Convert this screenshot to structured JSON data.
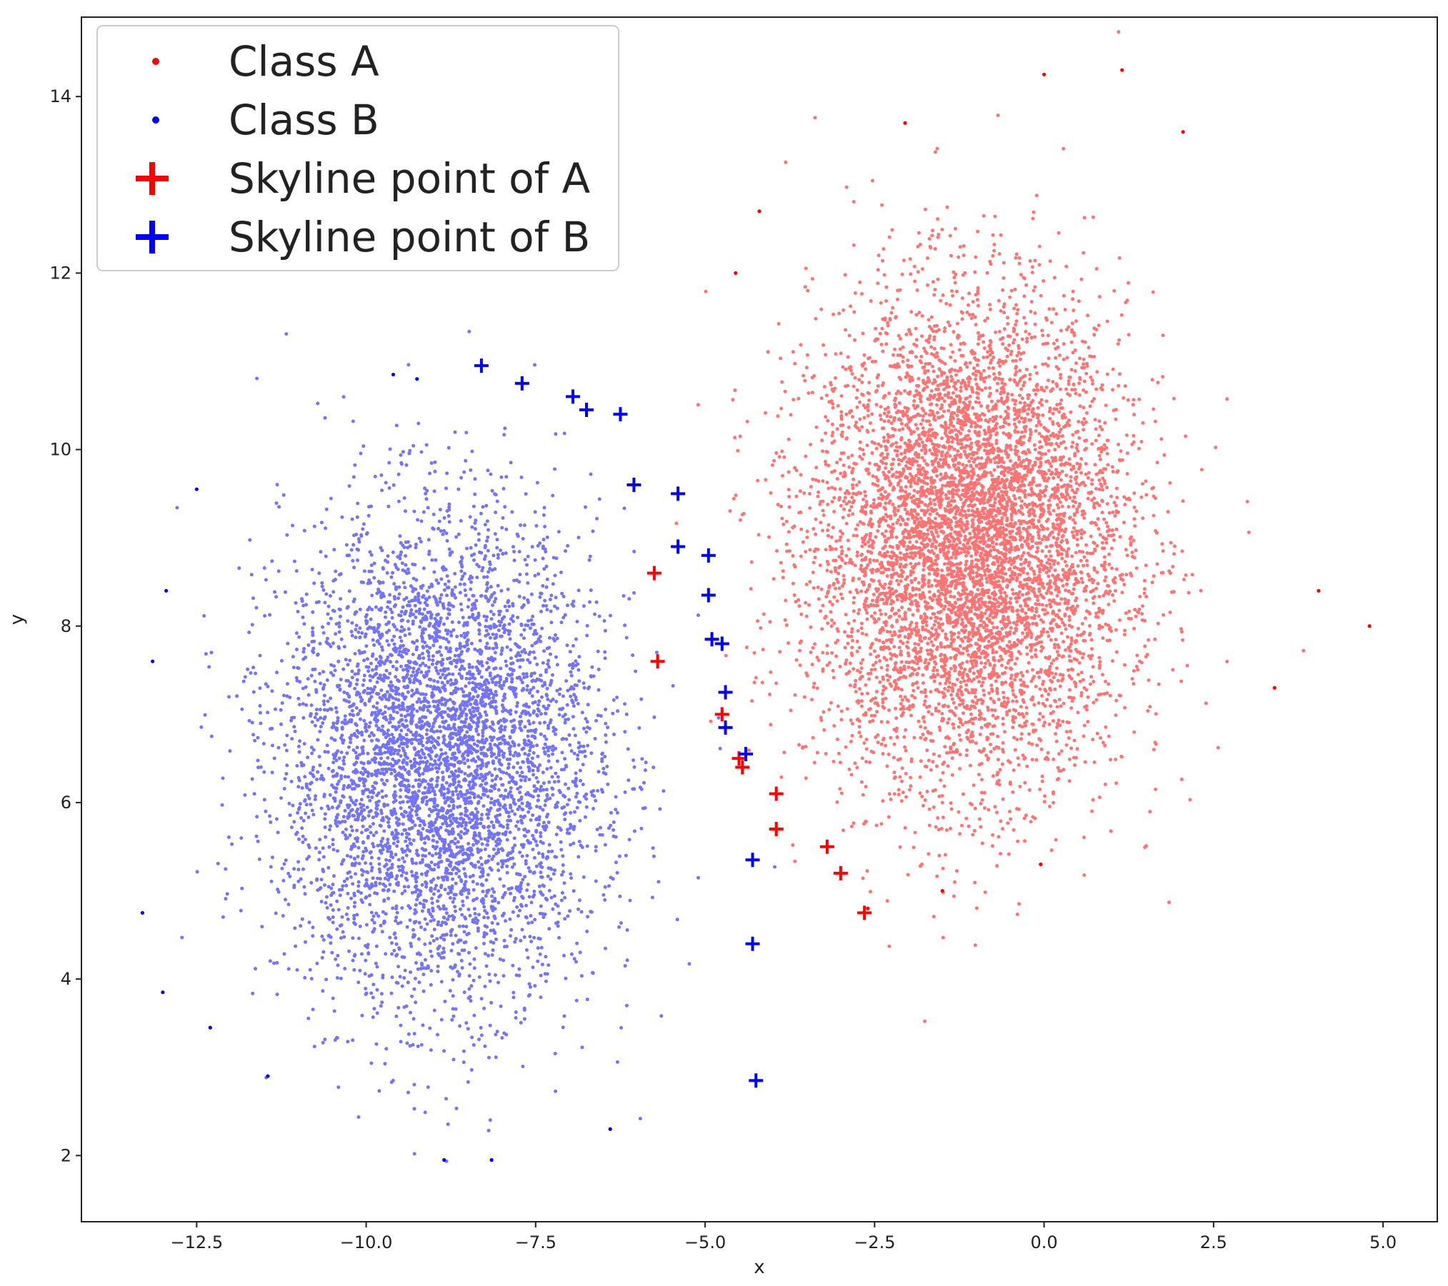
{
  "chart_data": {
    "type": "scatter",
    "title": "",
    "xlabel": "x",
    "ylabel": "y",
    "xlim": [
      -14.2,
      5.8
    ],
    "ylim": [
      1.25,
      14.9
    ],
    "xticks": [
      -12.5,
      -10.0,
      -7.5,
      -5.0,
      -2.5,
      0.0,
      2.5,
      5.0
    ],
    "xtick_labels": [
      "−12.5",
      "−10.0",
      "−7.5",
      "−5.0",
      "−2.5",
      "0.0",
      "2.5",
      "5.0"
    ],
    "yticks": [
      2,
      4,
      6,
      8,
      10,
      12,
      14
    ],
    "ytick_labels": [
      "2",
      "4",
      "6",
      "8",
      "10",
      "12",
      "14"
    ],
    "grid": false,
    "legend_position": "top-left",
    "legend": [
      {
        "label": "Class A",
        "color": "#ff0000",
        "marker": "dot"
      },
      {
        "label": "Class B",
        "color": "#0000ff",
        "marker": "dot"
      },
      {
        "label": "Skyline point of A",
        "color": "#ff0000",
        "marker": "plus"
      },
      {
        "label": "Skyline point of B",
        "color": "#0000ff",
        "marker": "plus"
      }
    ],
    "clusters": [
      {
        "series": "Class A",
        "center": [
          -1.1,
          8.95
        ],
        "std": [
          1.15,
          1.35
        ],
        "count": 20000
      },
      {
        "series": "Class B",
        "center": [
          -8.9,
          6.5
        ],
        "std": [
          1.15,
          1.35
        ],
        "count": 20000
      }
    ],
    "series": [
      {
        "name": "Skyline point of A",
        "color": "#ff0000",
        "marker": "plus",
        "points": [
          [
            -5.75,
            8.6
          ],
          [
            -5.7,
            7.6
          ],
          [
            -4.75,
            7.0
          ],
          [
            -4.5,
            6.5
          ],
          [
            -4.45,
            6.4
          ],
          [
            -3.95,
            6.1
          ],
          [
            -3.95,
            5.7
          ],
          [
            -3.2,
            5.5
          ],
          [
            -3.0,
            5.2
          ],
          [
            -2.65,
            4.75
          ]
        ]
      },
      {
        "name": "Skyline point of B",
        "color": "#0000ff",
        "marker": "plus",
        "points": [
          [
            -8.3,
            10.95
          ],
          [
            -7.7,
            10.75
          ],
          [
            -6.95,
            10.6
          ],
          [
            -6.75,
            10.45
          ],
          [
            -6.25,
            10.4
          ],
          [
            -6.05,
            9.6
          ],
          [
            -5.4,
            9.5
          ],
          [
            -5.4,
            8.9
          ],
          [
            -4.95,
            8.8
          ],
          [
            -4.95,
            8.35
          ],
          [
            -4.9,
            7.85
          ],
          [
            -4.75,
            7.8
          ],
          [
            -4.7,
            7.25
          ],
          [
            -4.7,
            6.85
          ],
          [
            -4.4,
            6.55
          ],
          [
            -4.3,
            5.35
          ],
          [
            -4.3,
            4.4
          ],
          [
            -4.25,
            2.85
          ]
        ]
      },
      {
        "name": "Class A outliers",
        "color": "#ff0000",
        "marker": "dot",
        "points": [
          [
            4.8,
            8.0
          ],
          [
            4.05,
            8.4
          ],
          [
            3.4,
            7.3
          ],
          [
            1.15,
            14.3
          ],
          [
            0.0,
            14.25
          ],
          [
            2.05,
            13.6
          ],
          [
            -2.05,
            13.7
          ],
          [
            -4.2,
            12.7
          ],
          [
            -4.55,
            12.0
          ],
          [
            -2.6,
            4.8
          ],
          [
            -1.5,
            5.0
          ],
          [
            -0.05,
            5.3
          ]
        ]
      },
      {
        "name": "Class B outliers",
        "color": "#0000ff",
        "marker": "dot",
        "points": [
          [
            -13.3,
            4.75
          ],
          [
            -12.95,
            8.4
          ],
          [
            -13.15,
            7.6
          ],
          [
            -12.5,
            9.55
          ],
          [
            -9.6,
            10.85
          ],
          [
            -9.25,
            10.8
          ],
          [
            -8.85,
            1.95
          ],
          [
            -8.15,
            1.95
          ],
          [
            -6.4,
            2.3
          ],
          [
            -11.45,
            2.9
          ],
          [
            -12.3,
            3.45
          ],
          [
            -13.0,
            3.85
          ]
        ]
      }
    ]
  }
}
